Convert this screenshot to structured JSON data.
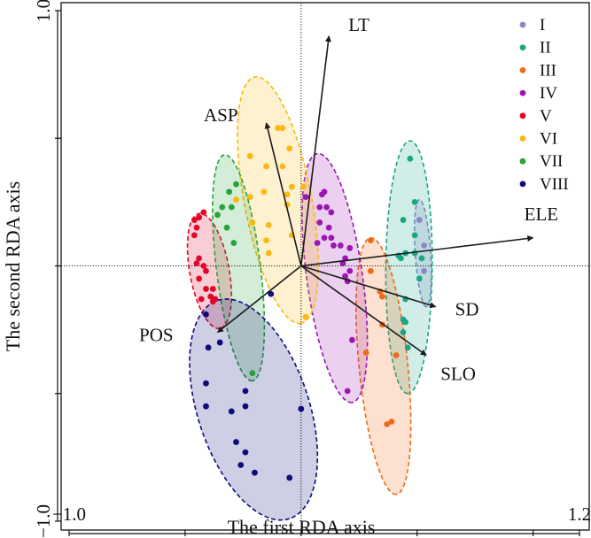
{
  "chart_data": {
    "type": "scatter",
    "xlabel": "The first RDA axis",
    "ylabel": "The second RDA axis",
    "xlim": [
      -1.0,
      1.2
    ],
    "ylim": [
      -1.0,
      1.0
    ],
    "x_tick_labels": [
      "−1.0",
      "1.2"
    ],
    "x_ticks": [
      -1.0,
      -0.5,
      0,
      0.5,
      1.0,
      1.2
    ],
    "y_tick_labels": [
      "1.0",
      "−1.0"
    ],
    "y_ticks": [
      1.0,
      0.5,
      0,
      -0.5,
      -1.0
    ],
    "grid": false,
    "zero_lines": true,
    "legend_position": "top-right",
    "series": [
      {
        "name": "I",
        "color": "#8b87c9",
        "points": [
          [
            0.51,
            0.18
          ],
          [
            0.53,
            0.08
          ],
          [
            0.53,
            -0.02
          ]
        ],
        "ellipse": {
          "end1": [
            0.51,
            0.26
          ],
          "end2": [
            0.54,
            -0.16
          ],
          "minor": 0.033
        }
      },
      {
        "name": "II",
        "color": "#1aa685",
        "points": [
          [
            0.47,
            0.42
          ],
          [
            0.49,
            0.25
          ],
          [
            0.44,
            0.18
          ],
          [
            0.49,
            0.12
          ],
          [
            0.42,
            0.04
          ],
          [
            0.45,
            0.05
          ],
          [
            0.49,
            0.05
          ],
          [
            0.43,
            0.03
          ],
          [
            0.52,
            0.03
          ],
          [
            0.51,
            -0.05
          ],
          [
            0.45,
            -0.13
          ],
          [
            0.44,
            -0.21
          ],
          [
            0.45,
            -0.22
          ],
          [
            0.44,
            -0.26
          ],
          [
            0.46,
            -0.32
          ]
        ],
        "ellipse": {
          "end1": [
            0.47,
            0.49
          ],
          "end2": [
            0.46,
            -0.5
          ],
          "minor": 0.1
        }
      },
      {
        "name": "III",
        "color": "#ee6a16",
        "points": [
          [
            0.3,
            0.1
          ],
          [
            0.3,
            -0.02
          ],
          [
            0.34,
            -0.1
          ],
          [
            0.35,
            -0.12
          ],
          [
            0.35,
            -0.23
          ],
          [
            0.28,
            -0.34
          ],
          [
            0.41,
            -0.35
          ],
          [
            0.37,
            -0.62
          ],
          [
            0.39,
            -0.61
          ]
        ],
        "ellipse": {
          "end1": [
            0.3,
            0.11
          ],
          "end2": [
            0.41,
            -0.895
          ],
          "minor": 0.105
        }
      },
      {
        "name": "IV",
        "color": "#9a17b0",
        "points": [
          [
            0.02,
            0.27
          ],
          [
            0.1,
            0.29
          ],
          [
            0.09,
            0.28
          ],
          [
            0.08,
            0.23
          ],
          [
            0.11,
            0.23
          ],
          [
            0.13,
            0.21
          ],
          [
            0.08,
            0.17
          ],
          [
            0.12,
            0.15
          ],
          [
            0.1,
            0.11
          ],
          [
            0.13,
            0.11
          ],
          [
            0.07,
            0.09
          ],
          [
            0.14,
            0.08
          ],
          [
            0.17,
            0.08
          ],
          [
            0.21,
            0.07
          ],
          [
            0.19,
            0.03
          ],
          [
            0.18,
            0.01
          ],
          [
            0.21,
            -0.02
          ],
          [
            0.19,
            -0.04
          ],
          [
            0.2,
            -0.06
          ],
          [
            0.22,
            -0.29
          ],
          [
            0.2,
            -0.49
          ]
        ],
        "ellipse": {
          "end1": [
            0.07,
            0.44
          ],
          "end2": [
            0.22,
            -0.535
          ],
          "minor": 0.12
        }
      },
      {
        "name": "V",
        "color": "#e1062a",
        "points": [
          [
            -0.42,
            0.21
          ],
          [
            -0.44,
            0.19
          ],
          [
            -0.46,
            0.18
          ],
          [
            -0.45,
            0.15
          ],
          [
            -0.46,
            0.12
          ],
          [
            -0.44,
            0.03
          ],
          [
            -0.45,
            0.01
          ],
          [
            -0.42,
            0.0
          ],
          [
            -0.41,
            -0.02
          ],
          [
            -0.44,
            -0.05
          ],
          [
            -0.41,
            -0.09
          ],
          [
            -0.38,
            -0.09
          ],
          [
            -0.39,
            -0.12
          ],
          [
            -0.37,
            -0.13
          ],
          [
            -0.43,
            -0.13
          ],
          [
            -0.38,
            -0.14
          ]
        ],
        "ellipse": {
          "end1": [
            -0.44,
            0.205
          ],
          "end2": [
            -0.35,
            -0.245
          ],
          "minor": 0.085
        }
      },
      {
        "name": "VI",
        "color": "#fbb80f",
        "points": [
          [
            -0.1,
            0.54
          ],
          [
            -0.08,
            0.54
          ],
          [
            -0.05,
            0.46
          ],
          [
            -0.22,
            0.43
          ],
          [
            -0.15,
            0.39
          ],
          [
            -0.08,
            0.39
          ],
          [
            -0.16,
            0.29
          ],
          [
            -0.22,
            0.27
          ],
          [
            -0.06,
            0.28
          ],
          [
            -0.04,
            0.31
          ],
          [
            -0.06,
            0.24
          ],
          [
            -0.28,
            0.26
          ],
          [
            -0.21,
            0.17
          ],
          [
            -0.14,
            0.16
          ],
          [
            -0.04,
            0.12
          ],
          [
            -0.15,
            0.1
          ],
          [
            -0.14,
            0.05
          ],
          [
            0.02,
            -0.2
          ],
          [
            0.01,
            0.31
          ]
        ],
        "ellipse": {
          "end1": [
            -0.2,
            0.74
          ],
          "end2": [
            0.0,
            -0.225
          ],
          "minor": 0.145
        }
      },
      {
        "name": "VII",
        "color": "#27a33a",
        "points": [
          [
            -0.28,
            0.32
          ],
          [
            -0.31,
            0.29
          ],
          [
            -0.3,
            0.23
          ],
          [
            -0.34,
            0.23
          ],
          [
            -0.36,
            0.2
          ],
          [
            -0.32,
            0.15
          ],
          [
            -0.29,
            0.09
          ],
          [
            -0.21,
            -0.42
          ]
        ],
        "ellipse": {
          "end1": [
            -0.33,
            0.435
          ],
          "end2": [
            -0.21,
            -0.45
          ],
          "minor": 0.095
        }
      },
      {
        "name": "VIII",
        "color": "#0c0c7c",
        "points": [
          [
            -0.13,
            -0.11
          ],
          [
            -0.41,
            -0.19
          ],
          [
            -0.35,
            -0.3
          ],
          [
            -0.4,
            -0.32
          ],
          [
            -0.41,
            -0.46
          ],
          [
            -0.24,
            -0.49
          ],
          [
            -0.41,
            -0.55
          ],
          [
            -0.24,
            -0.55
          ],
          [
            -0.3,
            -0.57
          ],
          [
            0.0,
            -0.56
          ],
          [
            -0.28,
            -0.69
          ],
          [
            -0.24,
            -0.73
          ],
          [
            -0.26,
            -0.78
          ],
          [
            -0.2,
            -0.81
          ],
          [
            -0.05,
            -0.83
          ]
        ],
        "ellipse": {
          "end1": [
            -0.36,
            -0.135
          ],
          "end2": [
            -0.05,
            -0.99
          ],
          "minor": 0.24
        }
      }
    ],
    "vectors": [
      {
        "label": "LT",
        "x": 0.12,
        "y": 0.9
      },
      {
        "label": "ASP",
        "x": -0.15,
        "y": 0.56
      },
      {
        "label": "ELE",
        "x": 1.0,
        "y": 0.11
      },
      {
        "label": "SD",
        "x": 0.58,
        "y": -0.16
      },
      {
        "label": "SLO",
        "x": 0.54,
        "y": -0.35
      },
      {
        "label": "POS",
        "x": -0.36,
        "y": -0.26
      }
    ]
  }
}
